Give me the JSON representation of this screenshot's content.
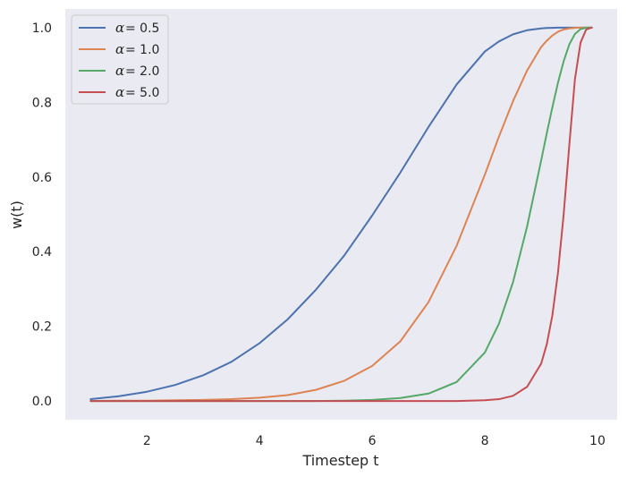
{
  "chart_data": {
    "type": "line",
    "title": "",
    "xlabel": "Timestep t",
    "ylabel": "w(t)",
    "xlim": [
      0.55,
      10.35
    ],
    "ylim": [
      -0.05,
      1.05
    ],
    "xticks": [
      2,
      4,
      6,
      8,
      10
    ],
    "xtick_labels": [
      "2",
      "4",
      "6",
      "8",
      "10"
    ],
    "yticks": [
      0.0,
      0.2,
      0.4,
      0.6,
      0.8,
      1.0
    ],
    "ytick_labels": [
      "0.0",
      "0.2",
      "0.4",
      "0.6",
      "0.8",
      "1.0"
    ],
    "grid": false,
    "legend_position": "top-left",
    "x": [
      1.0,
      1.5,
      2.0,
      2.5,
      3.0,
      3.5,
      4.0,
      4.5,
      5.0,
      5.5,
      6.0,
      6.5,
      7.0,
      7.5,
      8.0,
      8.25,
      8.5,
      8.75,
      9.0,
      9.1,
      9.2,
      9.3,
      9.4,
      9.5,
      9.6,
      9.7,
      9.8,
      9.9
    ],
    "series": [
      {
        "name": "α = 0.5",
        "legend_symbol": "α",
        "legend_value": "= 0.5",
        "color": "#4c72b0",
        "values": [
          0.005,
          0.013,
          0.025,
          0.043,
          0.069,
          0.105,
          0.155,
          0.219,
          0.298,
          0.389,
          0.497,
          0.612,
          0.734,
          0.848,
          0.936,
          0.963,
          0.982,
          0.993,
          0.998,
          0.999,
          0.9995,
          1.0,
          1.0,
          1.0,
          1.0,
          1.0,
          1.0,
          1.0
        ]
      },
      {
        "name": "α = 1.0",
        "legend_symbol": "α",
        "legend_value": "= 1.0",
        "color": "#dd8452",
        "values": [
          0.0,
          0.001,
          0.001,
          0.002,
          0.003,
          0.005,
          0.009,
          0.016,
          0.03,
          0.054,
          0.094,
          0.16,
          0.265,
          0.416,
          0.606,
          0.708,
          0.803,
          0.885,
          0.948,
          0.965,
          0.979,
          0.989,
          0.995,
          0.998,
          0.9995,
          1.0,
          1.0,
          1.0
        ]
      },
      {
        "name": "α = 2.0",
        "legend_symbol": "α",
        "legend_value": "= 2.0",
        "color": "#55a868",
        "values": [
          0.0,
          0.0,
          0.0,
          0.0,
          0.0,
          0.0,
          0.0,
          0.0,
          0.0,
          0.001,
          0.003,
          0.008,
          0.02,
          0.051,
          0.13,
          0.207,
          0.318,
          0.467,
          0.644,
          0.717,
          0.787,
          0.853,
          0.91,
          0.955,
          0.983,
          0.996,
          1.0,
          1.0
        ]
      },
      {
        "name": "α = 5.0",
        "legend_symbol": "α",
        "legend_value": "= 5.0",
        "color": "#c44e52",
        "values": [
          0.0,
          0.0,
          0.0,
          0.0,
          0.0,
          0.0,
          0.0,
          0.0,
          0.0,
          0.0,
          0.0,
          0.0,
          0.0,
          0.0,
          0.002,
          0.005,
          0.014,
          0.038,
          0.1,
          0.152,
          0.23,
          0.345,
          0.5,
          0.685,
          0.862,
          0.96,
          0.995,
          1.0
        ]
      }
    ]
  }
}
